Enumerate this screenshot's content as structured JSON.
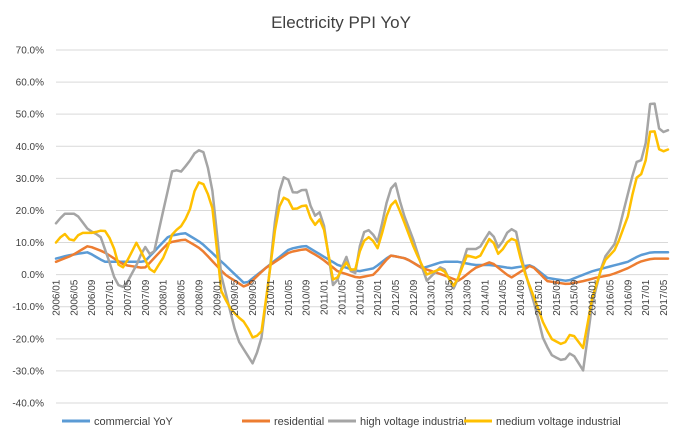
{
  "chart_data": {
    "type": "line",
    "title": "Electricity  PPI YoY",
    "xlabel": "",
    "ylabel": "",
    "ylim": [
      -0.4,
      0.7
    ],
    "ytick_values": [
      -0.4,
      -0.3,
      -0.2,
      -0.1,
      0.0,
      0.1,
      0.2,
      0.3,
      0.4,
      0.5,
      0.6,
      0.7
    ],
    "ytick_labels": [
      "-40.0%",
      "-30.0%",
      "-20.0%",
      "-10.0%",
      "0.0%",
      "10.0%",
      "20.0%",
      "30.0%",
      "40.0%",
      "50.0%",
      "60.0%",
      "70.0%"
    ],
    "x_start": "2006/01",
    "x_end": "2017/06",
    "x_count": 138,
    "x_tick_labels": [
      "2006/01",
      "2006/05",
      "2006/09",
      "2007/01",
      "2007/05",
      "2007/09",
      "2008/01",
      "2008/05",
      "2008/09",
      "2009/01",
      "2009/05",
      "2009/09",
      "2010/01",
      "2010/05",
      "2010/09",
      "2011/01",
      "2011/05",
      "2011/09",
      "2012/01",
      "2012/05",
      "2012/09",
      "2013/01",
      "2013/05",
      "2013/09",
      "2014/01",
      "2014/05",
      "2014/09",
      "2015/01",
      "2015/05",
      "2015/09",
      "2016/01",
      "2016/05",
      "2016/09",
      "2017/01",
      "2017/05"
    ],
    "grid": true,
    "legend_position": "bottom",
    "series": [
      {
        "name": "commercial YoY",
        "color": "#5b9bd5",
        "keypoints": [
          [
            0,
            0.05
          ],
          [
            3,
            0.06
          ],
          [
            8,
            0.07
          ],
          [
            12,
            0.04
          ],
          [
            17,
            0.04
          ],
          [
            22,
            0.04
          ],
          [
            28,
            0.12
          ],
          [
            32,
            0.13
          ],
          [
            36,
            0.1
          ],
          [
            42,
            0.03
          ],
          [
            47,
            -0.03
          ],
          [
            52,
            0.02
          ],
          [
            58,
            0.08
          ],
          [
            62,
            0.09
          ],
          [
            66,
            0.06
          ],
          [
            70,
            0.03
          ],
          [
            75,
            0.01
          ],
          [
            79,
            0.02
          ],
          [
            83,
            0.06
          ],
          [
            87,
            0.05
          ],
          [
            91,
            0.02
          ],
          [
            96,
            0.04
          ],
          [
            100,
            0.04
          ],
          [
            104,
            0.03
          ],
          [
            108,
            0.03
          ],
          [
            113,
            0.02
          ],
          [
            118,
            0.03
          ],
          [
            122,
            -0.01
          ],
          [
            127,
            -0.02
          ],
          [
            131,
            0.0
          ],
          [
            133,
            0.01
          ],
          [
            136,
            0.02
          ],
          [
            142,
            0.04
          ],
          [
            145,
            0.06
          ],
          [
            148,
            0.07
          ]
        ]
      },
      {
        "name": "residential",
        "color": "#ed7d31",
        "keypoints": [
          [
            0,
            0.04
          ],
          [
            4,
            0.06
          ],
          [
            8,
            0.09
          ],
          [
            12,
            0.07
          ],
          [
            17,
            0.03
          ],
          [
            22,
            0.02
          ],
          [
            28,
            0.1
          ],
          [
            32,
            0.11
          ],
          [
            36,
            0.08
          ],
          [
            42,
            0.0
          ],
          [
            47,
            -0.04
          ],
          [
            52,
            0.02
          ],
          [
            58,
            0.07
          ],
          [
            62,
            0.08
          ],
          [
            66,
            0.05
          ],
          [
            70,
            0.01
          ],
          [
            75,
            -0.01
          ],
          [
            79,
            0.0
          ],
          [
            83,
            0.06
          ],
          [
            87,
            0.05
          ],
          [
            91,
            0.02
          ],
          [
            96,
            0.0
          ],
          [
            100,
            -0.02
          ],
          [
            104,
            0.02
          ],
          [
            108,
            0.04
          ],
          [
            113,
            -0.01
          ],
          [
            118,
            0.03
          ],
          [
            122,
            -0.02
          ],
          [
            127,
            -0.03
          ],
          [
            131,
            -0.02
          ],
          [
            134,
            -0.01
          ],
          [
            138,
            0.0
          ],
          [
            142,
            0.02
          ],
          [
            145,
            0.04
          ],
          [
            148,
            0.05
          ]
        ]
      },
      {
        "name": "high voltage industrial",
        "color": "#a5a5a5",
        "keypoints": [
          [
            0,
            0.16
          ],
          [
            2,
            0.19
          ],
          [
            5,
            0.19
          ],
          [
            8,
            0.14
          ],
          [
            11,
            0.12
          ],
          [
            13,
            0.05
          ],
          [
            15,
            -0.03
          ],
          [
            17,
            -0.04
          ],
          [
            20,
            0.03
          ],
          [
            22,
            0.09
          ],
          [
            24,
            0.05
          ],
          [
            27,
            0.22
          ],
          [
            29,
            0.33
          ],
          [
            31,
            0.32
          ],
          [
            33,
            0.35
          ],
          [
            35,
            0.39
          ],
          [
            37,
            0.38
          ],
          [
            39,
            0.25
          ],
          [
            41,
            0.0
          ],
          [
            43,
            -0.1
          ],
          [
            45,
            -0.2
          ],
          [
            47,
            -0.24
          ],
          [
            49,
            -0.28
          ],
          [
            51,
            -0.2
          ],
          [
            53,
            0.0
          ],
          [
            55,
            0.24
          ],
          [
            57,
            0.32
          ],
          [
            59,
            0.25
          ],
          [
            62,
            0.27
          ],
          [
            64,
            0.18
          ],
          [
            66,
            0.2
          ],
          [
            69,
            -0.05
          ],
          [
            72,
            0.06
          ],
          [
            74,
            -0.02
          ],
          [
            76,
            0.13
          ],
          [
            78,
            0.14
          ],
          [
            80,
            0.1
          ],
          [
            82,
            0.22
          ],
          [
            84,
            0.3
          ],
          [
            86,
            0.2
          ],
          [
            89,
            0.1
          ],
          [
            92,
            -0.02
          ],
          [
            96,
            0.03
          ],
          [
            99,
            -0.05
          ],
          [
            102,
            0.08
          ],
          [
            105,
            0.08
          ],
          [
            108,
            0.14
          ],
          [
            110,
            0.08
          ],
          [
            112,
            0.13
          ],
          [
            114,
            0.15
          ],
          [
            116,
            0.03
          ],
          [
            119,
            -0.1
          ],
          [
            121,
            -0.2
          ],
          [
            123,
            -0.25
          ],
          [
            126,
            -0.27
          ],
          [
            128,
            -0.24
          ],
          [
            131,
            -0.3
          ],
          [
            133,
            -0.1
          ],
          [
            136,
            0.05
          ],
          [
            139,
            0.1
          ],
          [
            142,
            0.25
          ],
          [
            144,
            0.35
          ],
          [
            146,
            0.36
          ],
          [
            148,
            0.58
          ],
          [
            150,
            0.44
          ],
          [
            152,
            0.45
          ]
        ]
      },
      {
        "name": "medium voltage industrial",
        "color": "#ffc000",
        "keypoints": [
          [
            0,
            0.1
          ],
          [
            2,
            0.13
          ],
          [
            4,
            0.1
          ],
          [
            6,
            0.13
          ],
          [
            9,
            0.13
          ],
          [
            12,
            0.14
          ],
          [
            14,
            0.1
          ],
          [
            16,
            0.01
          ],
          [
            18,
            0.05
          ],
          [
            20,
            0.1
          ],
          [
            22,
            0.05
          ],
          [
            24,
            0.0
          ],
          [
            27,
            0.06
          ],
          [
            29,
            0.13
          ],
          [
            31,
            0.15
          ],
          [
            33,
            0.19
          ],
          [
            35,
            0.29
          ],
          [
            37,
            0.28
          ],
          [
            39,
            0.2
          ],
          [
            41,
            -0.05
          ],
          [
            43,
            -0.1
          ],
          [
            45,
            -0.13
          ],
          [
            47,
            -0.15
          ],
          [
            49,
            -0.2
          ],
          [
            51,
            -0.18
          ],
          [
            53,
            0.0
          ],
          [
            55,
            0.2
          ],
          [
            57,
            0.25
          ],
          [
            59,
            0.2
          ],
          [
            62,
            0.22
          ],
          [
            64,
            0.15
          ],
          [
            66,
            0.18
          ],
          [
            69,
            -0.03
          ],
          [
            72,
            0.04
          ],
          [
            74,
            0.0
          ],
          [
            76,
            0.1
          ],
          [
            78,
            0.12
          ],
          [
            80,
            0.08
          ],
          [
            82,
            0.18
          ],
          [
            84,
            0.24
          ],
          [
            86,
            0.18
          ],
          [
            89,
            0.08
          ],
          [
            92,
            0.0
          ],
          [
            96,
            0.02
          ],
          [
            99,
            -0.04
          ],
          [
            102,
            0.06
          ],
          [
            105,
            0.05
          ],
          [
            108,
            0.12
          ],
          [
            110,
            0.06
          ],
          [
            112,
            0.1
          ],
          [
            114,
            0.12
          ],
          [
            116,
            0.02
          ],
          [
            119,
            -0.08
          ],
          [
            121,
            -0.15
          ],
          [
            123,
            -0.2
          ],
          [
            126,
            -0.22
          ],
          [
            128,
            -0.18
          ],
          [
            131,
            -0.23
          ],
          [
            133,
            -0.08
          ],
          [
            136,
            0.04
          ],
          [
            139,
            0.08
          ],
          [
            142,
            0.18
          ],
          [
            144,
            0.3
          ],
          [
            146,
            0.32
          ],
          [
            148,
            0.48
          ],
          [
            150,
            0.38
          ],
          [
            152,
            0.39
          ]
        ]
      }
    ]
  }
}
